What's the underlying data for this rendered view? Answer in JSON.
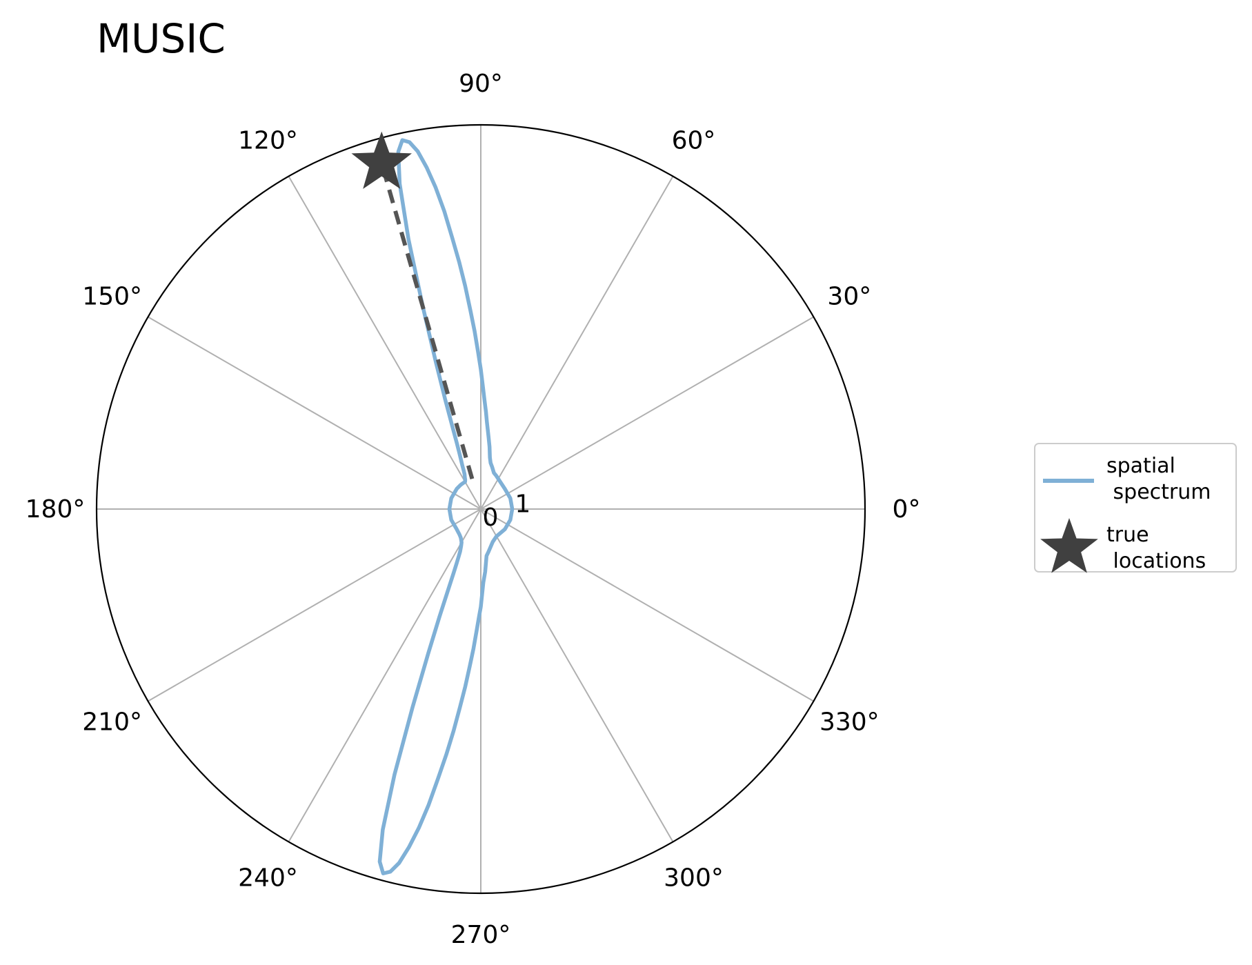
{
  "chart_data": {
    "type": "polar-line",
    "title": "MUSIC",
    "theta_unit": "degrees",
    "theta_ticks": [
      "0°",
      "30°",
      "60°",
      "90°",
      "120°",
      "150°",
      "180°",
      "210°",
      "240°",
      "270°",
      "300°",
      "330°"
    ],
    "r_ticks": [
      "0",
      "1"
    ],
    "rlim": [
      0,
      11
    ],
    "grid": true,
    "legend_position": "right",
    "legend": [
      {
        "label_lines": [
          "spatial",
          " spectrum"
        ],
        "marker": "line",
        "color": "#7fb0d6"
      },
      {
        "label_lines": [
          "true",
          " locations"
        ],
        "marker": "star",
        "color": "#404040"
      }
    ],
    "series": [
      {
        "name": "spatial spectrum",
        "color": "#7fb0d6",
        "theta": [
          0,
          20,
          40,
          60,
          65,
          70,
          75,
          78,
          80,
          82,
          84,
          86,
          87,
          88,
          89,
          90,
          91,
          92,
          93,
          94,
          95,
          96,
          97,
          98,
          99,
          100,
          101,
          102,
          103,
          104,
          105,
          106,
          107,
          108,
          109,
          110,
          111,
          112,
          113,
          114,
          115,
          116,
          117,
          118,
          120,
          125,
          130,
          140,
          160,
          180,
          200,
          220,
          230,
          235,
          240,
          242,
          244,
          245,
          246,
          247,
          248,
          249,
          250,
          251,
          252,
          253,
          254,
          255,
          256,
          257,
          258,
          259,
          260,
          261,
          262,
          263,
          264,
          265,
          266,
          267,
          268,
          269,
          270,
          272,
          274,
          277,
          280,
          290,
          300,
          320,
          340,
          360
        ],
        "r": [
          0.9,
          0.9,
          0.9,
          1.0,
          1.05,
          1.1,
          1.25,
          1.35,
          1.5,
          1.8,
          2.1,
          2.5,
          2.8,
          3.1,
          3.5,
          4.0,
          4.5,
          5.1,
          5.7,
          6.4,
          7.1,
          7.8,
          8.6,
          9.3,
          9.9,
          10.4,
          10.7,
          10.8,
          10.5,
          9.6,
          8.0,
          6.0,
          4.4,
          3.3,
          2.5,
          2.0,
          1.7,
          1.5,
          1.35,
          1.2,
          1.1,
          1.05,
          1.0,
          0.95,
          0.9,
          0.9,
          0.9,
          0.9,
          0.9,
          0.9,
          0.9,
          0.9,
          0.95,
          1.0,
          1.1,
          1.2,
          1.35,
          1.5,
          1.7,
          2.0,
          2.5,
          3.3,
          4.4,
          6.0,
          8.0,
          9.6,
          10.5,
          10.8,
          10.7,
          10.4,
          9.9,
          9.3,
          8.6,
          7.8,
          7.1,
          6.4,
          5.7,
          5.1,
          4.5,
          4.0,
          3.5,
          3.1,
          2.8,
          2.1,
          1.8,
          1.35,
          1.25,
          1.0,
          0.9,
          0.9,
          0.9,
          0.9
        ]
      }
    ],
    "true_locations": [
      {
        "theta": 106,
        "r": 10.3
      }
    ],
    "true_location_line": {
      "theta": 106,
      "r": [
        0.9,
        10.3
      ],
      "style": "dashed",
      "color": "#555555"
    }
  }
}
